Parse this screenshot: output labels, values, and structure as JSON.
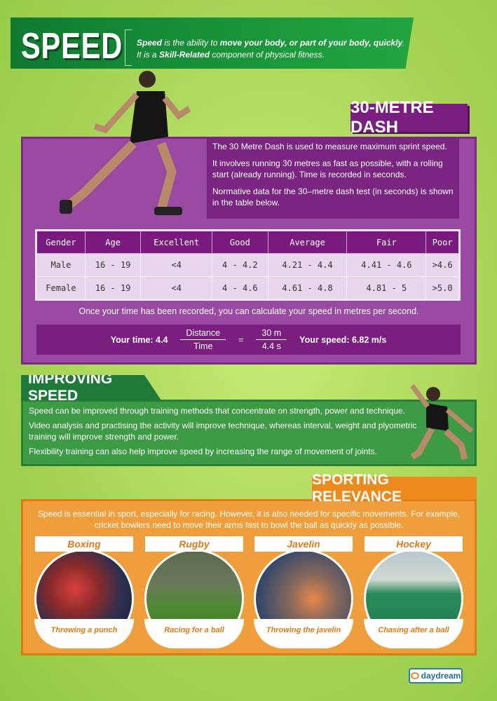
{
  "header": {
    "title": "Speed",
    "definition_line1_parts": [
      "Speed",
      " is the ability to ",
      "move your body, or part of your body, quickly",
      "."
    ],
    "definition_line2_parts": [
      "It is a ",
      "Skill-Related",
      " component of physical fitness."
    ]
  },
  "dash": {
    "title": "30-Metre Dash",
    "intro": [
      "The 30 Metre Dash is used to measure maximum sprint speed.",
      "It involves running 30 metres as fast as possible, with a rolling start (already running). Time is recorded in seconds.",
      "Normative data for the 30–metre dash test (in seconds) is shown in the table below."
    ],
    "table": {
      "headers": [
        "Gender",
        "Age",
        "Excellent",
        "Good",
        "Average",
        "Fair",
        "Poor"
      ],
      "rows": [
        [
          "Male",
          "16 - 19",
          "<4",
          "4 - 4.2",
          "4.21 - 4.4",
          "4.41 - 4.6",
          ">4.6"
        ],
        [
          "Female",
          "16 - 19",
          "<4",
          "4 - 4.6",
          "4.61 - 4.8",
          "4.81 - 5",
          ">5.0"
        ]
      ]
    },
    "note": "Once your time has been recorded, you can calculate your speed in metres per second.",
    "formula": {
      "your_time": "Your time: 4.4",
      "num1": "Distance",
      "den1": "Time",
      "equals": "=",
      "num2": "30 m",
      "den2": "4.4 s",
      "your_speed": "Your speed: 6.82 m/s"
    }
  },
  "improving": {
    "title": "Improving Speed",
    "paragraphs": [
      "Speed can be improved through training methods that concentrate on strength, power and technique.",
      "Video analysis and practising the activity will improve technique, whereas interval, weight and plyometric training will improve strength and power.",
      "Flexibility training can also help improve speed by increasing the range of movement of joints."
    ]
  },
  "sporting": {
    "title": "Sporting Relevance",
    "intro": "Speed is essential in sport, especially for racing. However, it is also needed for specific movements. For example, cricket bowlers need to move their arms fast to bowl the ball as quickly as possible.",
    "cards": [
      {
        "sport": "Boxing",
        "caption": "Throwing a punch"
      },
      {
        "sport": "Rugby",
        "caption": "Racing for a ball"
      },
      {
        "sport": "Javelin",
        "caption": "Throwing the javelin"
      },
      {
        "sport": "Hockey",
        "caption": "Chasing after a ball"
      }
    ]
  },
  "logo": {
    "text": "daydream"
  },
  "colors": {
    "green": "#1c9a3c",
    "purple": "#7a1f7f",
    "orange": "#ed8a1e",
    "background": "#a6d455"
  }
}
